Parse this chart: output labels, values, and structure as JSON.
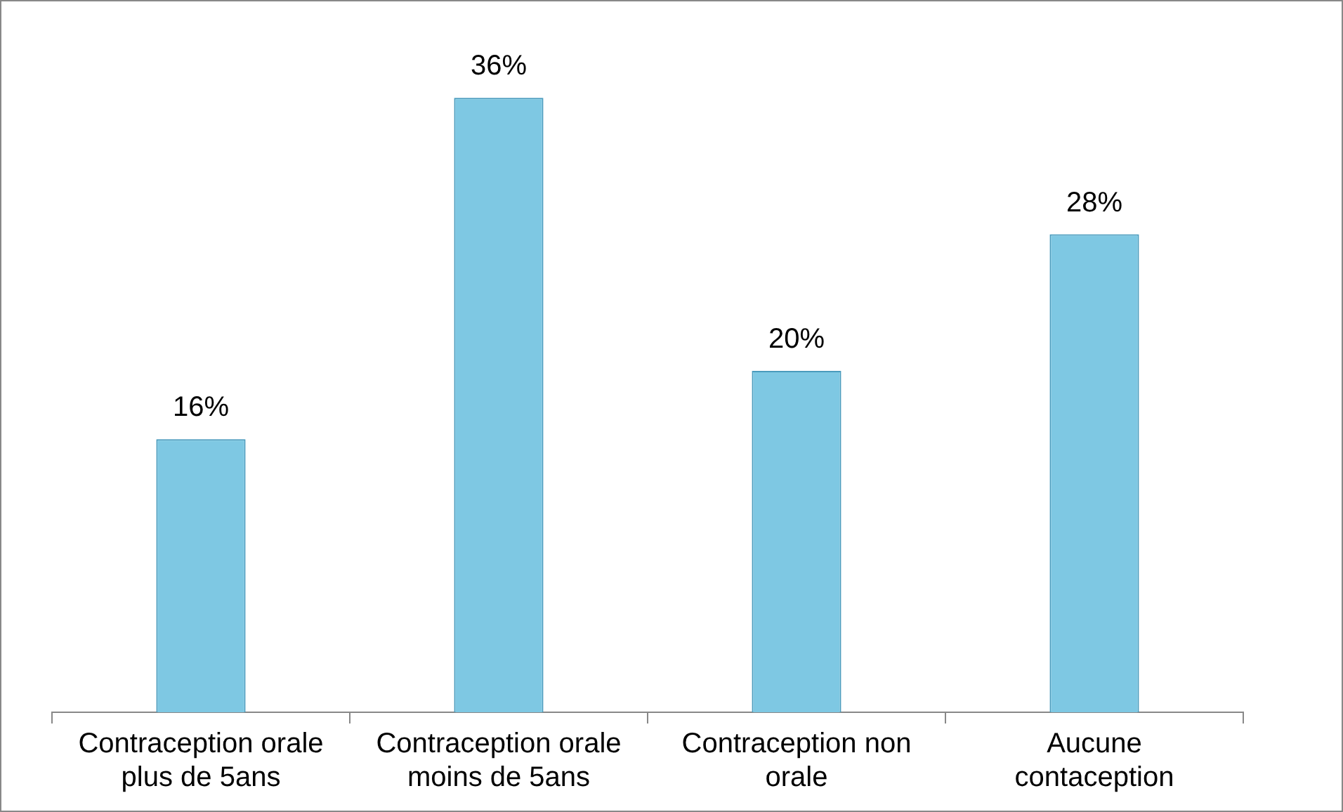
{
  "chart_data": {
    "type": "bar",
    "categories": [
      "Contraception orale\nplus de 5ans",
      "Contraception orale\nmoins de 5ans",
      "Contraception non\norale",
      "Aucune\ncontaception"
    ],
    "values": [
      16,
      36,
      20,
      28
    ],
    "value_labels": [
      "16%",
      "36%",
      "20%",
      "28%"
    ],
    "color": "#7ec8e3",
    "tick_labels": "x",
    "grid": false,
    "legend": false
  }
}
